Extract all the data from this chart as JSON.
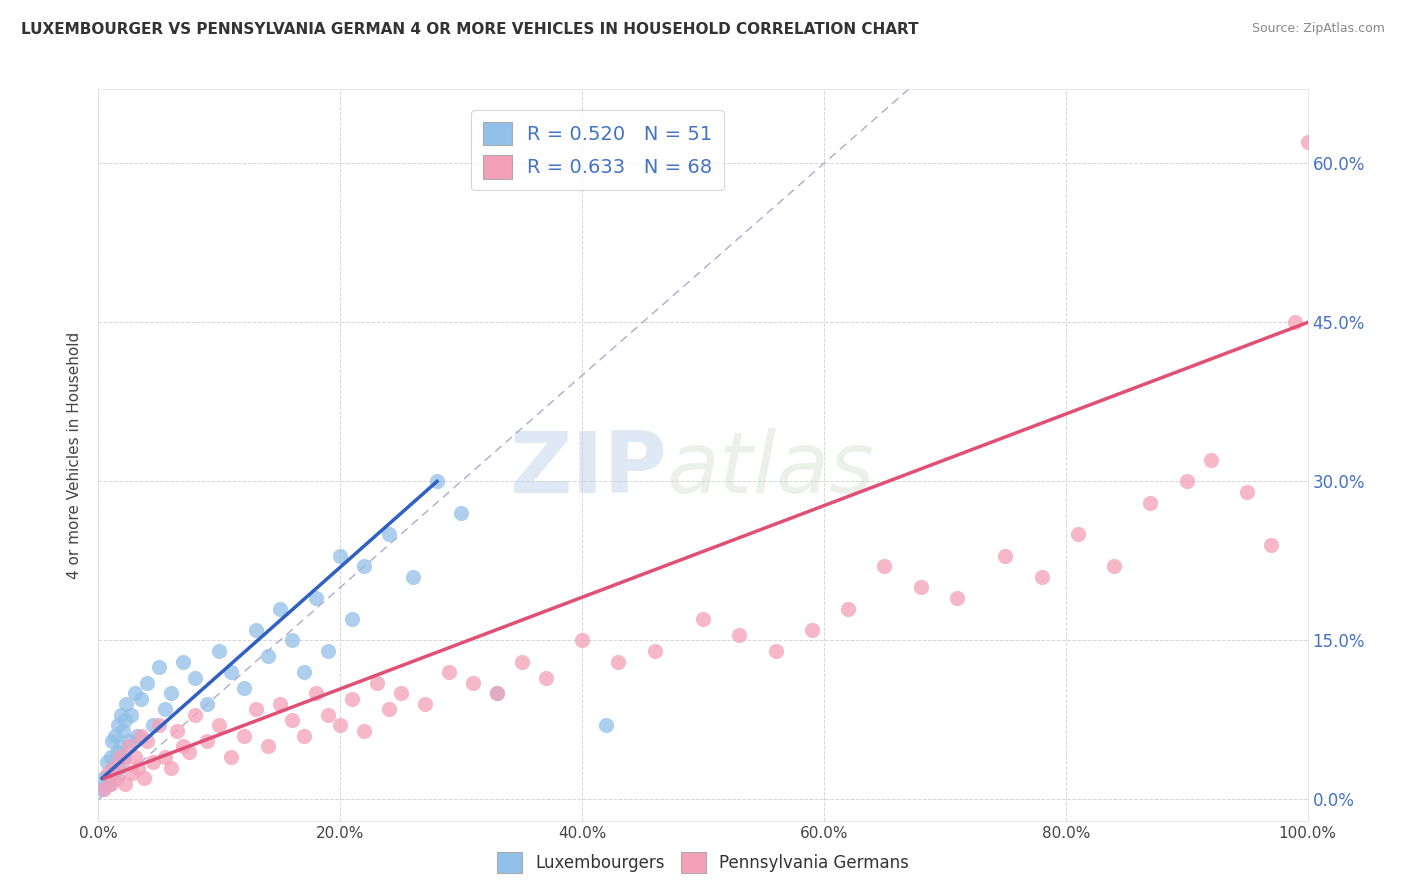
{
  "title": "LUXEMBOURGER VS PENNSYLVANIA GERMAN 4 OR MORE VEHICLES IN HOUSEHOLD CORRELATION CHART",
  "source": "Source: ZipAtlas.com",
  "ylabel": "4 or more Vehicles in Household",
  "xlim": [
    0,
    100
  ],
  "ylim": [
    -2,
    67
  ],
  "x_ticks": [
    0,
    20,
    40,
    60,
    80,
    100
  ],
  "x_tick_labels": [
    "0.0%",
    "20.0%",
    "40.0%",
    "60.0%",
    "80.0%",
    "100.0%"
  ],
  "y_ticks": [
    0,
    15,
    30,
    45,
    60
  ],
  "y_tick_labels": [
    "0.0%",
    "15.0%",
    "30.0%",
    "45.0%",
    "60.0%"
  ],
  "legend_labels": [
    "Luxembourgers",
    "Pennsylvania Germans"
  ],
  "lux_R": 0.52,
  "lux_N": 51,
  "pg_R": 0.633,
  "pg_N": 68,
  "lux_color": "#92C0E8",
  "pg_color": "#F4A0B8",
  "lux_line_color": "#3060C0",
  "pg_line_color": "#E05075",
  "ref_line_color": "#8888BB",
  "watermark_zip": "ZIP",
  "watermark_atlas": "atlas",
  "lux_scatter_x": [
    0.3,
    0.5,
    0.7,
    0.8,
    0.9,
    1.0,
    1.1,
    1.2,
    1.3,
    1.4,
    1.5,
    1.6,
    1.7,
    1.8,
    1.9,
    2.0,
    2.1,
    2.2,
    2.3,
    2.5,
    2.7,
    3.0,
    3.2,
    3.5,
    4.0,
    4.5,
    5.0,
    5.5,
    6.0,
    7.0,
    8.0,
    9.0,
    10.0,
    11.0,
    12.0,
    13.0,
    14.0,
    15.0,
    16.0,
    17.0,
    18.0,
    19.0,
    20.0,
    21.0,
    22.0,
    24.0,
    26.0,
    28.0,
    30.0,
    33.0,
    42.0
  ],
  "lux_scatter_y": [
    1.0,
    2.0,
    3.5,
    2.0,
    1.5,
    4.0,
    5.5,
    3.0,
    2.5,
    6.0,
    4.5,
    7.0,
    3.0,
    5.0,
    8.0,
    6.5,
    4.0,
    7.5,
    9.0,
    5.5,
    8.0,
    10.0,
    6.0,
    9.5,
    11.0,
    7.0,
    12.5,
    8.5,
    10.0,
    13.0,
    11.5,
    9.0,
    14.0,
    12.0,
    10.5,
    16.0,
    13.5,
    18.0,
    15.0,
    12.0,
    19.0,
    14.0,
    23.0,
    17.0,
    22.0,
    25.0,
    21.0,
    30.0,
    27.0,
    10.0,
    7.0
  ],
  "pg_scatter_x": [
    0.5,
    0.8,
    1.0,
    1.2,
    1.5,
    1.8,
    2.0,
    2.2,
    2.5,
    2.8,
    3.0,
    3.3,
    3.5,
    3.8,
    4.0,
    4.5,
    5.0,
    5.5,
    6.0,
    6.5,
    7.0,
    7.5,
    8.0,
    9.0,
    10.0,
    11.0,
    12.0,
    13.0,
    14.0,
    15.0,
    16.0,
    17.0,
    18.0,
    19.0,
    20.0,
    21.0,
    22.0,
    23.0,
    24.0,
    25.0,
    27.0,
    29.0,
    31.0,
    33.0,
    35.0,
    37.0,
    40.0,
    43.0,
    46.0,
    50.0,
    53.0,
    56.0,
    59.0,
    62.0,
    65.0,
    68.0,
    71.0,
    75.0,
    78.0,
    81.0,
    84.0,
    87.0,
    90.0,
    92.0,
    95.0,
    97.0,
    99.0,
    100.0
  ],
  "pg_scatter_y": [
    1.0,
    2.5,
    1.5,
    3.0,
    2.0,
    4.0,
    3.5,
    1.5,
    5.0,
    2.5,
    4.0,
    3.0,
    6.0,
    2.0,
    5.5,
    3.5,
    7.0,
    4.0,
    3.0,
    6.5,
    5.0,
    4.5,
    8.0,
    5.5,
    7.0,
    4.0,
    6.0,
    8.5,
    5.0,
    9.0,
    7.5,
    6.0,
    10.0,
    8.0,
    7.0,
    9.5,
    6.5,
    11.0,
    8.5,
    10.0,
    9.0,
    12.0,
    11.0,
    10.0,
    13.0,
    11.5,
    15.0,
    13.0,
    14.0,
    17.0,
    15.5,
    14.0,
    16.0,
    18.0,
    22.0,
    20.0,
    19.0,
    23.0,
    21.0,
    25.0,
    22.0,
    28.0,
    30.0,
    32.0,
    29.0,
    24.0,
    45.0,
    62.0
  ],
  "lux_line_x": [
    0.3,
    28.0
  ],
  "lux_line_y": [
    2.0,
    30.0
  ],
  "pg_line_x": [
    0.5,
    100.0
  ],
  "pg_line_y": [
    2.0,
    45.0
  ]
}
